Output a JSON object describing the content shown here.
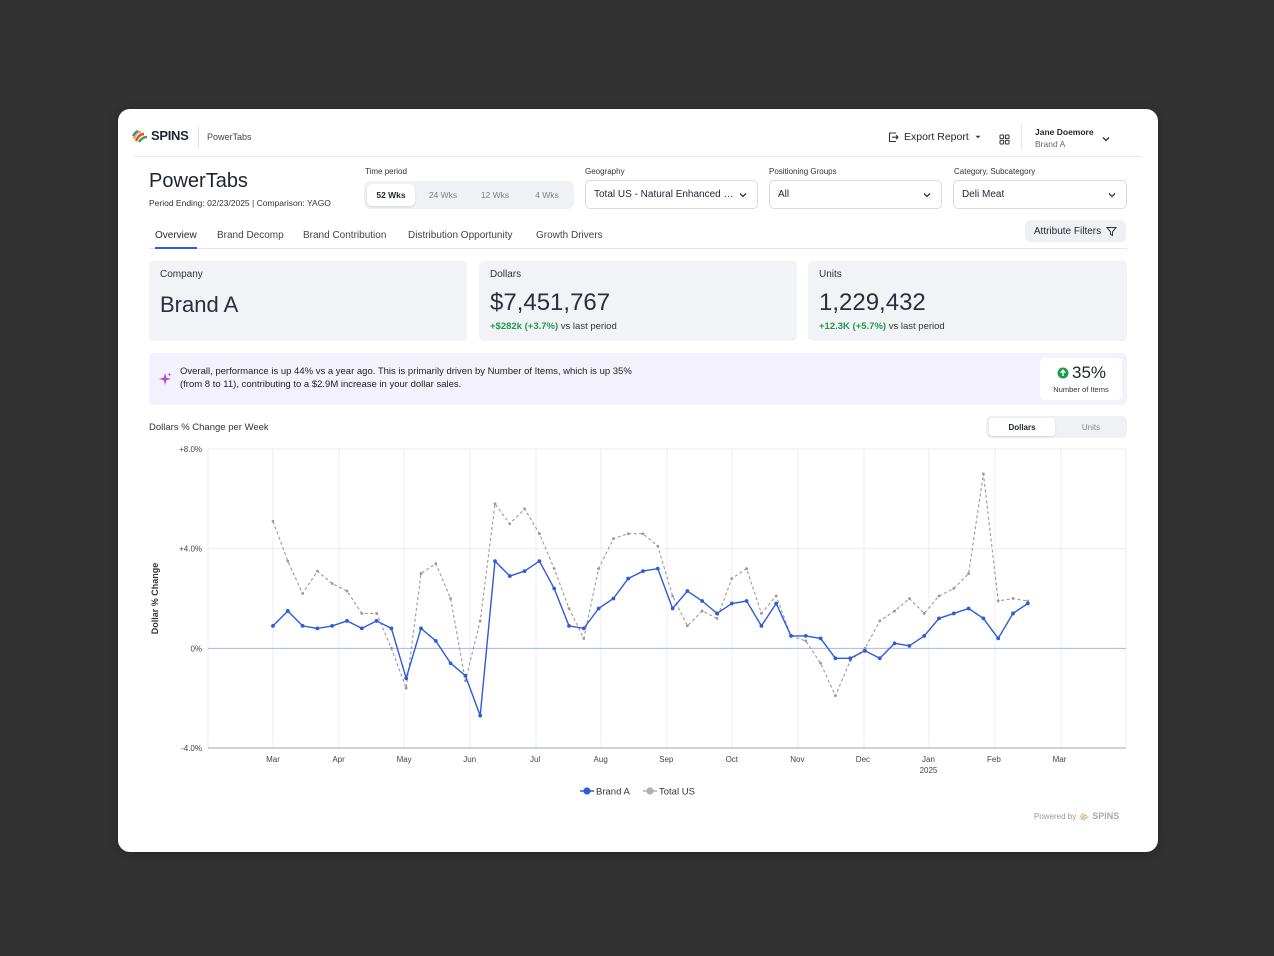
{
  "app": {
    "logo_text": "SPINS",
    "app_name": "PowerTabs",
    "export_label": "Export Report",
    "user_name": "Jane Doemore",
    "user_org": "Brand A"
  },
  "header": {
    "title": "PowerTabs",
    "subtitle": "Period Ending: 02/23/2025  |  Comparison: YAGO"
  },
  "filters": {
    "time_period_label": "Time period",
    "time_options": [
      "52 Wks",
      "24 Wks",
      "12 Wks",
      "4 Wks"
    ],
    "time_selected": "52 Wks",
    "geography_label": "Geography",
    "geography_value": "Total US - Natural Enhanced Channel",
    "positioning_label": "Positioning Groups",
    "positioning_value": "All",
    "category_label": "Category, Subcategory",
    "category_value": "Deli Meat"
  },
  "tabs": [
    "Overview",
    "Brand Decomp",
    "Brand Contribution",
    "Distribution Opportunity",
    "Growth Drivers"
  ],
  "active_tab": "Overview",
  "attribute_filters_label": "Attribute Filters",
  "kpis": {
    "company": {
      "label": "Company",
      "value": "Brand A"
    },
    "dollars": {
      "label": "Dollars",
      "value": "$7,451,767",
      "delta": "+$282k (+3.7%)",
      "delta_suffix": " vs last period"
    },
    "units": {
      "label": "Units",
      "value": "1,229,432",
      "delta": "+12.3K (+5.7%)",
      "delta_suffix": " vs last period"
    }
  },
  "insight": {
    "line1": "Overall, performance is up 44% vs a year ago. This is primarily driven by Number of Items, which is up 35%",
    "line2": "(from 8 to 11), contributing to a $2.9M increase in your dollar sales.",
    "badge_value": "35%",
    "badge_label": "Number of Items"
  },
  "chart_section": {
    "title": "Dollars % Change per Week",
    "toggle_options": [
      "Dollars",
      "Units"
    ],
    "toggle_selected": "Dollars"
  },
  "colors": {
    "brand_line": "#2e5bd8",
    "total_line": "#9a9a9a",
    "positive": "#1f9a4d",
    "accent": "#2e5bd8"
  },
  "chart_data": {
    "type": "line",
    "title": "",
    "ylabel": "Dollar % Change",
    "xlabel": "",
    "ylim": [
      -4,
      8
    ],
    "y_ticks": [
      "+8.0%",
      "+4.0%",
      "0%",
      "-4.0%"
    ],
    "y_tick_values": [
      8,
      4,
      0,
      -4
    ],
    "x_range": [
      0,
      55
    ],
    "x_ticks": [
      {
        "label": "Mar",
        "x": 0
      },
      {
        "label": "Apr",
        "x": 4.43
      },
      {
        "label": "May",
        "x": 8.86
      },
      {
        "label": "Jun",
        "x": 13.29
      },
      {
        "label": "Jul",
        "x": 17.71
      },
      {
        "label": "Aug",
        "x": 22.14
      },
      {
        "label": "Sep",
        "x": 26.57
      },
      {
        "label": "Oct",
        "x": 31
      },
      {
        "label": "Nov",
        "x": 35.43
      },
      {
        "label": "Dec",
        "x": 39.86
      },
      {
        "label": "Jan",
        "x": 44.29,
        "sub": "2025"
      },
      {
        "label": "Feb",
        "x": 48.71
      },
      {
        "label": "Mar",
        "x": 53.14
      }
    ],
    "grid": true,
    "legend_position": "bottom-center",
    "series": [
      {
        "name": "Brand A",
        "style": "solid",
        "values": [
          0.9,
          1.5,
          0.9,
          0.8,
          0.9,
          1.1,
          0.8,
          1.1,
          0.8,
          -1.2,
          0.8,
          0.3,
          -0.6,
          -1.1,
          -2.7,
          3.5,
          2.9,
          3.1,
          3.5,
          2.4,
          0.9,
          0.8,
          1.6,
          2.0,
          2.8,
          3.1,
          3.2,
          1.6,
          2.3,
          1.9,
          1.4,
          1.8,
          1.9,
          0.9,
          1.8,
          0.5,
          0.5,
          0.4,
          -0.4,
          -0.4,
          -0.1,
          -0.4,
          0.2,
          0.1,
          0.5,
          1.2,
          1.4,
          1.6,
          1.2,
          0.4,
          1.4,
          1.8
        ]
      },
      {
        "name": "Total US",
        "style": "dashed",
        "values": [
          5.1,
          3.5,
          2.2,
          3.1,
          2.6,
          2.3,
          1.4,
          1.4,
          0.0,
          -1.6,
          3.0,
          3.4,
          2.0,
          -1.3,
          1.1,
          5.8,
          5.0,
          5.6,
          4.6,
          3.2,
          1.6,
          0.4,
          3.2,
          4.4,
          4.6,
          4.6,
          4.1,
          2.1,
          0.9,
          1.5,
          1.2,
          2.8,
          3.2,
          1.4,
          2.1,
          0.5,
          0.3,
          -0.6,
          -1.9,
          -0.5,
          0.0,
          1.1,
          1.5,
          2.0,
          1.4,
          2.1,
          2.4,
          3.0,
          7.0,
          1.9,
          2.0,
          1.9
        ]
      }
    ]
  }
}
